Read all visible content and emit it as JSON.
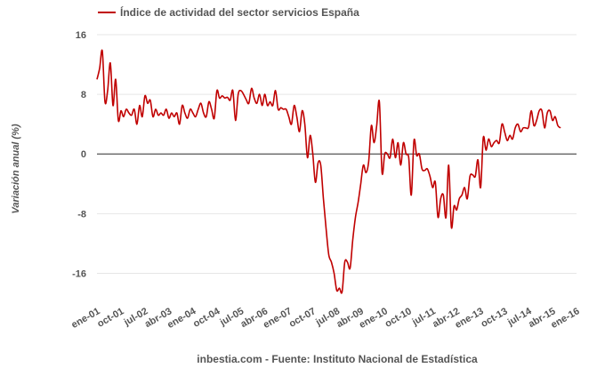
{
  "chart_data": {
    "type": "line",
    "title": "",
    "xlabel": "",
    "ylabel": "Variación anual (%)",
    "source": "inbestia.com - Fuente: Instituto Nacional de Estadística",
    "legend": {
      "position": "top-left"
    },
    "grid": {
      "horizontal": true,
      "vertical": false
    },
    "ylim": [
      -20,
      16
    ],
    "yticks": [
      -16,
      -8,
      0,
      8,
      16
    ],
    "xlim": [
      "2001-01",
      "2016-01"
    ],
    "xticks": [
      "ene-01",
      "oct-01",
      "jul-02",
      "abr-03",
      "ene-04",
      "oct-04",
      "jul-05",
      "abr-06",
      "ene-07",
      "oct-07",
      "jul-08",
      "abr-09",
      "ene-10",
      "oct-10",
      "jul-11",
      "abr-12",
      "ene-13",
      "oct-13",
      "jul-14",
      "abr-15",
      "ene-16"
    ],
    "colors": {
      "series": "#c00000",
      "grid": "#e6e6e6",
      "zero": "#555555"
    },
    "series": [
      {
        "name": "Índice de actividad del sector servicios España",
        "points": [
          [
            "2001-01",
            10
          ],
          [
            "2001-02",
            11.5
          ],
          [
            "2001-03",
            13.8
          ],
          [
            "2001-04",
            7
          ],
          [
            "2001-05",
            8.5
          ],
          [
            "2001-06",
            12.2
          ],
          [
            "2001-07",
            6.5
          ],
          [
            "2001-08",
            10
          ],
          [
            "2001-09",
            4.5
          ],
          [
            "2001-10",
            5.8
          ],
          [
            "2001-11",
            5
          ],
          [
            "2001-12",
            6
          ],
          [
            "2002-01",
            5.5
          ],
          [
            "2002-02",
            5.2
          ],
          [
            "2002-03",
            6
          ],
          [
            "2002-04",
            4
          ],
          [
            "2002-05",
            6.5
          ],
          [
            "2002-06",
            5
          ],
          [
            "2002-07",
            7.8
          ],
          [
            "2002-08",
            6.8
          ],
          [
            "2002-09",
            7.2
          ],
          [
            "2002-10",
            5
          ],
          [
            "2002-11",
            6
          ],
          [
            "2002-12",
            5.2
          ],
          [
            "2003-01",
            5.5
          ],
          [
            "2003-02",
            5.2
          ],
          [
            "2003-03",
            6
          ],
          [
            "2003-04",
            4.8
          ],
          [
            "2003-05",
            5.5
          ],
          [
            "2003-06",
            5
          ],
          [
            "2003-07",
            5.5
          ],
          [
            "2003-08",
            4
          ],
          [
            "2003-09",
            6.5
          ],
          [
            "2003-10",
            5.5
          ],
          [
            "2003-11",
            4.8
          ],
          [
            "2003-12",
            6
          ],
          [
            "2004-01",
            5.5
          ],
          [
            "2004-02",
            5
          ],
          [
            "2004-03",
            6
          ],
          [
            "2004-04",
            6.8
          ],
          [
            "2004-05",
            5.5
          ],
          [
            "2004-06",
            5
          ],
          [
            "2004-07",
            7
          ],
          [
            "2004-08",
            6
          ],
          [
            "2004-09",
            4.8
          ],
          [
            "2004-10",
            8.5
          ],
          [
            "2004-11",
            7.5
          ],
          [
            "2004-12",
            7.8
          ],
          [
            "2005-01",
            7.5
          ],
          [
            "2005-02",
            7.6
          ],
          [
            "2005-03",
            7.2
          ],
          [
            "2005-04",
            8.5
          ],
          [
            "2005-05",
            4.5
          ],
          [
            "2005-06",
            8
          ],
          [
            "2005-07",
            8.5
          ],
          [
            "2005-08",
            8
          ],
          [
            "2005-09",
            7.3
          ],
          [
            "2005-10",
            6.8
          ],
          [
            "2005-11",
            8.8
          ],
          [
            "2005-12",
            7.5
          ],
          [
            "2006-01",
            6.8
          ],
          [
            "2006-02",
            8
          ],
          [
            "2006-03",
            6.5
          ],
          [
            "2006-04",
            8
          ],
          [
            "2006-05",
            6.5
          ],
          [
            "2006-06",
            7
          ],
          [
            "2006-07",
            6.5
          ],
          [
            "2006-08",
            8.5
          ],
          [
            "2006-09",
            6
          ],
          [
            "2006-10",
            6.2
          ],
          [
            "2006-11",
            6
          ],
          [
            "2006-12",
            6
          ],
          [
            "2007-01",
            5
          ],
          [
            "2007-02",
            4
          ],
          [
            "2007-03",
            6.5
          ],
          [
            "2007-04",
            5
          ],
          [
            "2007-05",
            3
          ],
          [
            "2007-06",
            5.8
          ],
          [
            "2007-07",
            4
          ],
          [
            "2007-08",
            -0.5
          ],
          [
            "2007-09",
            2.5
          ],
          [
            "2007-10",
            0
          ],
          [
            "2007-11",
            -3.8
          ],
          [
            "2007-12",
            -1.2
          ],
          [
            "2008-01",
            -1.5
          ],
          [
            "2008-02",
            -6
          ],
          [
            "2008-03",
            -10
          ],
          [
            "2008-04",
            -13.5
          ],
          [
            "2008-05",
            -14.5
          ],
          [
            "2008-06",
            -16
          ],
          [
            "2008-07",
            -18.3
          ],
          [
            "2008-08",
            -18
          ],
          [
            "2008-09",
            -18.5
          ],
          [
            "2008-10",
            -14.5
          ],
          [
            "2008-11",
            -14.5
          ],
          [
            "2008-12",
            -15.3
          ],
          [
            "2009-01",
            -11.5
          ],
          [
            "2009-02",
            -8.5
          ],
          [
            "2009-03",
            -6.5
          ],
          [
            "2009-04",
            -4
          ],
          [
            "2009-05",
            -1.5
          ],
          [
            "2009-06",
            -2.5
          ],
          [
            "2009-07",
            -1
          ],
          [
            "2009-08",
            3.8
          ],
          [
            "2009-09",
            1.5
          ],
          [
            "2009-10",
            3.8
          ],
          [
            "2009-11",
            7
          ],
          [
            "2009-12",
            -2.5
          ],
          [
            "2010-01",
            0
          ],
          [
            "2010-02",
            0
          ],
          [
            "2010-03",
            -0.5
          ],
          [
            "2010-04",
            2
          ],
          [
            "2010-05",
            -0.5
          ],
          [
            "2010-06",
            1.5
          ],
          [
            "2010-07",
            -1.5
          ],
          [
            "2010-08",
            1.5
          ],
          [
            "2010-09",
            0
          ],
          [
            "2010-10",
            -0.5
          ],
          [
            "2010-11",
            -5.5
          ],
          [
            "2010-12",
            1.8
          ],
          [
            "2011-01",
            -0.2
          ],
          [
            "2011-02",
            0
          ],
          [
            "2011-03",
            -2
          ],
          [
            "2011-04",
            -2.2
          ],
          [
            "2011-05",
            -2
          ],
          [
            "2011-06",
            -3
          ],
          [
            "2011-07",
            -4.5
          ],
          [
            "2011-08",
            -3.8
          ],
          [
            "2011-09",
            -8.5
          ],
          [
            "2011-10",
            -6
          ],
          [
            "2011-11",
            -5.5
          ],
          [
            "2011-12",
            -8.5
          ],
          [
            "2012-01",
            -1.5
          ],
          [
            "2012-02",
            -9.8
          ],
          [
            "2012-03",
            -7
          ],
          [
            "2012-04",
            -7.5
          ],
          [
            "2012-05",
            -6
          ],
          [
            "2012-06",
            -5.5
          ],
          [
            "2012-07",
            -4.5
          ],
          [
            "2012-08",
            -6
          ],
          [
            "2012-09",
            -3
          ],
          [
            "2012-10",
            -2.8
          ],
          [
            "2012-11",
            -3
          ],
          [
            "2012-12",
            -0.8
          ],
          [
            "2013-01",
            -4.5
          ],
          [
            "2013-02",
            2.2
          ],
          [
            "2013-03",
            0.5
          ],
          [
            "2013-04",
            2
          ],
          [
            "2013-05",
            1
          ],
          [
            "2013-06",
            1.5
          ],
          [
            "2013-07",
            1.8
          ],
          [
            "2013-08",
            1.5
          ],
          [
            "2013-09",
            4
          ],
          [
            "2013-10",
            3
          ],
          [
            "2013-11",
            1.8
          ],
          [
            "2013-12",
            2.5
          ],
          [
            "2014-01",
            2
          ],
          [
            "2014-02",
            3.5
          ],
          [
            "2014-03",
            4
          ],
          [
            "2014-04",
            3
          ],
          [
            "2014-05",
            3.5
          ],
          [
            "2014-06",
            3.5
          ],
          [
            "2014-07",
            3.6
          ],
          [
            "2014-08",
            5.8
          ],
          [
            "2014-09",
            3.8
          ],
          [
            "2014-10",
            4.5
          ],
          [
            "2014-11",
            5.8
          ],
          [
            "2014-12",
            5.8
          ],
          [
            "2015-01",
            3.5
          ],
          [
            "2015-02",
            5.5
          ],
          [
            "2015-03",
            5.8
          ],
          [
            "2015-04",
            4.5
          ],
          [
            "2015-05",
            5
          ],
          [
            "2015-06",
            3.8
          ],
          [
            "2015-07",
            3.5
          ]
        ]
      }
    ]
  }
}
